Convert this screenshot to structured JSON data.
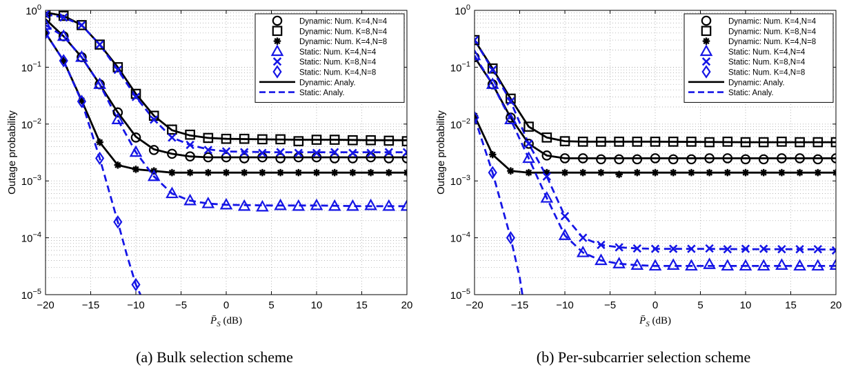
{
  "chart_data": [
    {
      "type": "line",
      "caption": "(a) Bulk selection scheme",
      "xlabel": "P̄_S (dB)",
      "ylabel": "Outage probability",
      "xlim": [
        -20,
        20
      ],
      "ylim": [
        1e-05,
        1
      ],
      "yscale": "log",
      "grid": true,
      "legend_position": "top-right",
      "x_ticks": [
        -20,
        -15,
        -10,
        -5,
        0,
        5,
        10,
        15,
        20
      ],
      "y_ticks": [
        1e-05,
        0.0001,
        0.001,
        0.01,
        0.1,
        1
      ],
      "series": [
        {
          "name": "Dynamic: Num. K=4,N=4",
          "color": "#000000",
          "marker": "circle",
          "x": [
            -20,
            -18,
            -16,
            -14,
            -12,
            -10,
            -8,
            -6,
            -4,
            -2,
            0,
            2,
            4,
            6,
            8,
            10,
            12,
            14,
            16,
            18,
            20
          ],
          "y": [
            0.7,
            0.35,
            0.15,
            0.05,
            0.016,
            0.0058,
            0.0035,
            0.003,
            0.0027,
            0.0026,
            0.0026,
            0.0025,
            0.0026,
            0.0025,
            0.0026,
            0.0026,
            0.0025,
            0.0025,
            0.0026,
            0.0025,
            0.0025
          ]
        },
        {
          "name": "Dynamic: Num. K=8,N=4",
          "color": "#000000",
          "marker": "square",
          "x": [
            -20,
            -18,
            -16,
            -14,
            -12,
            -10,
            -8,
            -6,
            -4,
            -2,
            0,
            2,
            4,
            6,
            8,
            10,
            12,
            14,
            16,
            18,
            20
          ],
          "y": [
            0.92,
            0.8,
            0.55,
            0.25,
            0.1,
            0.034,
            0.014,
            0.008,
            0.0065,
            0.0057,
            0.0055,
            0.0055,
            0.0054,
            0.0054,
            0.005,
            0.0053,
            0.0053,
            0.0052,
            0.0052,
            0.0051,
            0.005
          ]
        },
        {
          "name": "Dynamic: Num. K=4,N=8",
          "color": "#000000",
          "marker": "star",
          "x": [
            -20,
            -18,
            -16,
            -14,
            -12,
            -10,
            -8,
            -6,
            -4,
            -2,
            0,
            2,
            4,
            6,
            8,
            10,
            12,
            14,
            16,
            18,
            20
          ],
          "y": [
            0.4,
            0.13,
            0.026,
            0.0048,
            0.0019,
            0.0016,
            0.0015,
            0.0014,
            0.0014,
            0.0014,
            0.0014,
            0.0014,
            0.0014,
            0.0014,
            0.0014,
            0.0014,
            0.0014,
            0.0014,
            0.0014,
            0.0014,
            0.0014
          ]
        },
        {
          "name": "Static: Num. K=4,N=4",
          "color": "#1515e6",
          "marker": "triangle",
          "x": [
            -20,
            -18,
            -16,
            -14,
            -12,
            -10,
            -8,
            -6,
            -4,
            -2,
            0,
            2,
            4,
            6,
            8,
            10,
            12,
            14,
            16,
            18,
            20
          ],
          "y": [
            0.55,
            0.35,
            0.15,
            0.05,
            0.012,
            0.0032,
            0.0012,
            0.0006,
            0.00045,
            0.0004,
            0.00038,
            0.00036,
            0.00035,
            0.00037,
            0.00036,
            0.00037,
            0.00036,
            0.00036,
            0.00037,
            0.00036,
            0.00036
          ]
        },
        {
          "name": "Static: Num. K=8,N=4",
          "color": "#1515e6",
          "marker": "x",
          "x": [
            -20,
            -18,
            -16,
            -14,
            -12,
            -10,
            -8,
            -6,
            -4,
            -2,
            0,
            2,
            4,
            6,
            8,
            10,
            12,
            14,
            16,
            18,
            20
          ],
          "y": [
            0.85,
            0.75,
            0.55,
            0.25,
            0.09,
            0.03,
            0.012,
            0.0058,
            0.0043,
            0.0035,
            0.0033,
            0.0032,
            0.0031,
            0.0032,
            0.0031,
            0.0031,
            0.0032,
            0.0031,
            0.0031,
            0.0032,
            0.0032
          ]
        },
        {
          "name": "Static: Num. K=4,N=8",
          "color": "#1515e6",
          "marker": "diamond",
          "x": [
            -20,
            -18,
            -16,
            -14,
            -12,
            -10
          ],
          "y": [
            0.4,
            0.13,
            0.025,
            0.0025,
            0.00019,
            1.5e-05
          ]
        },
        {
          "name": "Dynamic: Analy.",
          "color": "#000000",
          "line": "solid",
          "marker": "none",
          "lines": [
            {
              "x": [
                -20,
                -18,
                -16,
                -14,
                -12,
                -10,
                -8,
                -6,
                -4,
                -2,
                0,
                4,
                8,
                12,
                16,
                20
              ],
              "y": [
                0.7,
                0.35,
                0.15,
                0.05,
                0.016,
                0.006,
                0.0036,
                0.003,
                0.0027,
                0.0026,
                0.0026,
                0.0026,
                0.0026,
                0.0026,
                0.0026,
                0.0026
              ]
            },
            {
              "x": [
                -20,
                -18,
                -16,
                -14,
                -12,
                -10,
                -8,
                -6,
                -4,
                -2,
                0,
                4,
                8,
                12,
                16,
                20
              ],
              "y": [
                0.92,
                0.8,
                0.55,
                0.25,
                0.1,
                0.034,
                0.014,
                0.0078,
                0.0063,
                0.0057,
                0.0055,
                0.0054,
                0.0053,
                0.0053,
                0.0052,
                0.0052
              ]
            },
            {
              "x": [
                -20,
                -18,
                -16,
                -14,
                -12,
                -10,
                -8,
                -6,
                -4,
                0,
                10,
                20
              ],
              "y": [
                0.4,
                0.13,
                0.026,
                0.0048,
                0.0019,
                0.0016,
                0.0015,
                0.0014,
                0.0014,
                0.0014,
                0.0014,
                0.0014
              ]
            }
          ]
        },
        {
          "name": "Static: Analy.",
          "color": "#1515e6",
          "line": "dashed",
          "marker": "none",
          "lines": [
            {
              "x": [
                -20,
                -18,
                -16,
                -14,
                -12,
                -10,
                -8,
                -6,
                -4,
                -2,
                0,
                5,
                10,
                15,
                20
              ],
              "y": [
                0.55,
                0.35,
                0.15,
                0.05,
                0.012,
                0.0032,
                0.0012,
                0.0006,
                0.00045,
                0.0004,
                0.00038,
                0.00037,
                0.00037,
                0.00036,
                0.00036
              ]
            },
            {
              "x": [
                -20,
                -18,
                -16,
                -14,
                -12,
                -10,
                -8,
                -6,
                -4,
                -2,
                0,
                5,
                10,
                15,
                20
              ],
              "y": [
                0.85,
                0.75,
                0.55,
                0.25,
                0.09,
                0.03,
                0.012,
                0.0058,
                0.0043,
                0.0036,
                0.0033,
                0.0032,
                0.0032,
                0.0032,
                0.0032
              ]
            },
            {
              "x": [
                -20,
                -18,
                -16,
                -14,
                -12,
                -11,
                -10,
                -9.5
              ],
              "y": [
                0.4,
                0.13,
                0.025,
                0.0025,
                0.00019,
                5e-05,
                1.5e-05,
                1e-05
              ]
            }
          ]
        }
      ]
    },
    {
      "type": "line",
      "caption": "(b) Per-subcarrier selection scheme",
      "xlabel": "P̄_S (dB)",
      "ylabel": "Outage probability",
      "xlim": [
        -20,
        20
      ],
      "ylim": [
        1e-05,
        1
      ],
      "yscale": "log",
      "grid": true,
      "legend_position": "top-right",
      "x_ticks": [
        -20,
        -15,
        -10,
        -5,
        0,
        5,
        10,
        15,
        20
      ],
      "y_ticks": [
        1e-05,
        0.0001,
        0.001,
        0.01,
        0.1,
        1
      ],
      "series": [
        {
          "name": "Dynamic: Num. K=4,N=4",
          "color": "#000000",
          "marker": "circle",
          "x": [
            -20,
            -18,
            -16,
            -14,
            -12,
            -10,
            -8,
            -6,
            -4,
            -2,
            0,
            2,
            4,
            6,
            8,
            10,
            12,
            14,
            16,
            18,
            20
          ],
          "y": [
            0.15,
            0.05,
            0.013,
            0.0045,
            0.0028,
            0.0025,
            0.0025,
            0.0024,
            0.0024,
            0.0024,
            0.0025,
            0.0024,
            0.0024,
            0.0025,
            0.0025,
            0.0024,
            0.0024,
            0.0025,
            0.0025,
            0.0024,
            0.0025
          ]
        },
        {
          "name": "Dynamic: Num. K=8,N=4",
          "color": "#000000",
          "marker": "square",
          "x": [
            -20,
            -18,
            -16,
            -14,
            -12,
            -10,
            -8,
            -6,
            -4,
            -2,
            0,
            2,
            4,
            6,
            8,
            10,
            12,
            14,
            16,
            18,
            20
          ],
          "y": [
            0.3,
            0.095,
            0.028,
            0.009,
            0.0058,
            0.005,
            0.0049,
            0.0049,
            0.0049,
            0.0049,
            0.0049,
            0.0049,
            0.0049,
            0.0048,
            0.0049,
            0.0048,
            0.0048,
            0.0049,
            0.0048,
            0.0048,
            0.0048
          ]
        },
        {
          "name": "Dynamic: Num. K=4,N=8",
          "color": "#000000",
          "marker": "star",
          "x": [
            -20,
            -18,
            -16,
            -14,
            -12,
            -10,
            -8,
            -6,
            -4,
            -2,
            0,
            2,
            4,
            6,
            8,
            10,
            12,
            14,
            16,
            18,
            20
          ],
          "y": [
            0.014,
            0.0029,
            0.0015,
            0.0014,
            0.0014,
            0.0014,
            0.0014,
            0.0014,
            0.0013,
            0.0014,
            0.0014,
            0.0014,
            0.0014,
            0.0014,
            0.0014,
            0.0014,
            0.0014,
            0.0014,
            0.0014,
            0.0014,
            0.0014
          ]
        },
        {
          "name": "Static: Num. K=4,N=4",
          "color": "#1515e6",
          "marker": "triangle",
          "x": [
            -20,
            -18,
            -16,
            -14,
            -12,
            -10,
            -8,
            -6,
            -4,
            -2,
            0,
            2,
            4,
            6,
            8,
            10,
            12,
            14,
            16,
            18,
            20
          ],
          "y": [
            0.16,
            0.05,
            0.012,
            0.0025,
            0.0005,
            0.00011,
            5.5e-05,
            4e-05,
            3.5e-05,
            3.3e-05,
            3.2e-05,
            3.3e-05,
            3.2e-05,
            3.4e-05,
            3.2e-05,
            3.2e-05,
            3.2e-05,
            3.3e-05,
            3.2e-05,
            3.2e-05,
            3.3e-05
          ]
        },
        {
          "name": "Static: Num. K=8,N=4",
          "color": "#1515e6",
          "marker": "x",
          "x": [
            -20,
            -18,
            -16,
            -14,
            -12,
            -10,
            -8,
            -6,
            -4,
            -2,
            0,
            2,
            4,
            6,
            8,
            10,
            12,
            14,
            16,
            18,
            20
          ],
          "y": [
            0.3,
            0.09,
            0.025,
            0.0045,
            0.0012,
            0.00024,
            0.0001,
            7.5e-05,
            6.8e-05,
            6.5e-05,
            6.4e-05,
            6.4e-05,
            6.4e-05,
            6.5e-05,
            6.3e-05,
            6.4e-05,
            6.4e-05,
            6.3e-05,
            6.3e-05,
            6.3e-05,
            6e-05
          ]
        },
        {
          "name": "Static: Num. K=4,N=8",
          "color": "#1515e6",
          "marker": "diamond",
          "x": [
            -20,
            -18,
            -16
          ],
          "y": [
            0.013,
            0.0014,
            0.0001
          ]
        },
        {
          "name": "Dynamic: Analy.",
          "color": "#000000",
          "line": "solid",
          "marker": "none",
          "lines": [
            {
              "x": [
                -20,
                -18,
                -16,
                -14,
                -12,
                -10,
                -8,
                -4,
                0,
                10,
                20
              ],
              "y": [
                0.15,
                0.05,
                0.013,
                0.0045,
                0.0028,
                0.0025,
                0.0025,
                0.0025,
                0.0025,
                0.0025,
                0.0025
              ]
            },
            {
              "x": [
                -20,
                -18,
                -16,
                -14,
                -12,
                -10,
                -8,
                -4,
                0,
                10,
                20
              ],
              "y": [
                0.3,
                0.095,
                0.028,
                0.009,
                0.0058,
                0.005,
                0.0049,
                0.0049,
                0.0049,
                0.0048,
                0.0048
              ]
            },
            {
              "x": [
                -20,
                -18,
                -16,
                -14,
                -12,
                -10,
                0,
                10,
                20
              ],
              "y": [
                0.014,
                0.0029,
                0.0015,
                0.0014,
                0.0014,
                0.0014,
                0.0014,
                0.0014,
                0.0014
              ]
            }
          ]
        },
        {
          "name": "Static: Analy.",
          "color": "#1515e6",
          "line": "dashed",
          "marker": "none",
          "lines": [
            {
              "x": [
                -20,
                -18,
                -16,
                -14,
                -12,
                -10,
                -8,
                -6,
                -4,
                -2,
                0,
                5,
                10,
                15,
                20
              ],
              "y": [
                0.16,
                0.05,
                0.012,
                0.0025,
                0.0005,
                0.00011,
                5.5e-05,
                4e-05,
                3.5e-05,
                3.3e-05,
                3.2e-05,
                3.2e-05,
                3.2e-05,
                3.2e-05,
                3.2e-05
              ]
            },
            {
              "x": [
                -20,
                -18,
                -16,
                -14,
                -12,
                -10,
                -8,
                -6,
                -4,
                -2,
                0,
                5,
                10,
                15,
                20
              ],
              "y": [
                0.3,
                0.09,
                0.025,
                0.0045,
                0.0012,
                0.00024,
                0.0001,
                7.5e-05,
                6.8e-05,
                6.5e-05,
                6.4e-05,
                6.4e-05,
                6.3e-05,
                6.3e-05,
                6.2e-05
              ]
            },
            {
              "x": [
                -20,
                -18,
                -16,
                -15,
                -14.7
              ],
              "y": [
                0.013,
                0.0014,
                0.0001,
                2e-05,
                1e-05
              ]
            }
          ]
        }
      ]
    }
  ]
}
